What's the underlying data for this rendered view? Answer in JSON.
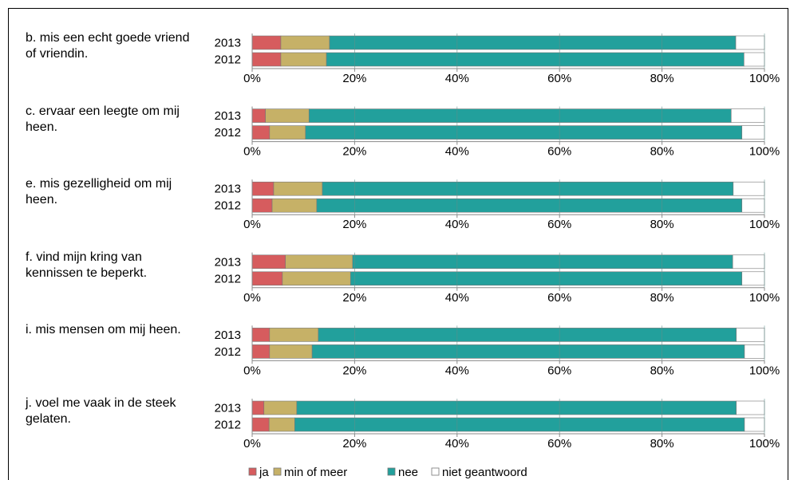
{
  "chart_data": [
    {
      "type": "stacked-barh",
      "title": "b. mis een echt goede vriend of vriendin.",
      "categories": [
        "2013",
        "2012"
      ],
      "series": [
        {
          "name": "ja",
          "color": "#d65c5e",
          "values": [
            5.6,
            5.6
          ]
        },
        {
          "name": "min of meer",
          "color": "#c6b167",
          "values": [
            9.5,
            8.9
          ]
        },
        {
          "name": "nee",
          "color": "#22a09c",
          "values": [
            79.3,
            81.5
          ]
        },
        {
          "name": "niet geantwoord",
          "color": "#ffffff",
          "values": [
            5.6,
            4.0
          ]
        }
      ],
      "xlim": [
        0,
        100
      ],
      "xticks": [
        {
          "value": 0,
          "label": "0%"
        },
        {
          "value": 20,
          "label": "20%"
        },
        {
          "value": 40,
          "label": "40%"
        },
        {
          "value": 60,
          "label": "60%"
        },
        {
          "value": 80,
          "label": "80%"
        },
        {
          "value": 100,
          "label": "100%"
        }
      ],
      "grid": true
    },
    {
      "type": "stacked-barh",
      "title": "c. ervaar een leegte om mij heen.",
      "categories": [
        "2013",
        "2012"
      ],
      "series": [
        {
          "name": "ja",
          "color": "#d65c5e",
          "values": [
            2.6,
            3.4
          ]
        },
        {
          "name": "min of meer",
          "color": "#c6b167",
          "values": [
            8.5,
            7.0
          ]
        },
        {
          "name": "nee",
          "color": "#22a09c",
          "values": [
            82.4,
            85.2
          ]
        },
        {
          "name": "niet geantwoord",
          "color": "#ffffff",
          "values": [
            6.5,
            4.4
          ]
        }
      ],
      "xlim": [
        0,
        100
      ],
      "xticks": [
        {
          "value": 0,
          "label": "0%"
        },
        {
          "value": 20,
          "label": "20%"
        },
        {
          "value": 40,
          "label": "40%"
        },
        {
          "value": 60,
          "label": "60%"
        },
        {
          "value": 80,
          "label": "80%"
        },
        {
          "value": 100,
          "label": "100%"
        }
      ],
      "grid": true
    },
    {
      "type": "stacked-barh",
      "title": "e. mis gezelligheid om mij heen.",
      "categories": [
        "2013",
        "2012"
      ],
      "series": [
        {
          "name": "ja",
          "color": "#d65c5e",
          "values": [
            4.2,
            3.9
          ]
        },
        {
          "name": "min of meer",
          "color": "#c6b167",
          "values": [
            9.5,
            8.7
          ]
        },
        {
          "name": "nee",
          "color": "#22a09c",
          "values": [
            80.2,
            83.0
          ]
        },
        {
          "name": "niet geantwoord",
          "color": "#ffffff",
          "values": [
            6.1,
            4.4
          ]
        }
      ],
      "xlim": [
        0,
        100
      ],
      "xticks": [
        {
          "value": 0,
          "label": "0%"
        },
        {
          "value": 20,
          "label": "20%"
        },
        {
          "value": 40,
          "label": "40%"
        },
        {
          "value": 60,
          "label": "60%"
        },
        {
          "value": 80,
          "label": "80%"
        },
        {
          "value": 100,
          "label": "100%"
        }
      ],
      "grid": true
    },
    {
      "type": "stacked-barh",
      "title": "f. vind mijn kring van kennissen te beperkt.",
      "categories": [
        "2013",
        "2012"
      ],
      "series": [
        {
          "name": "ja",
          "color": "#d65c5e",
          "values": [
            6.5,
            5.9
          ]
        },
        {
          "name": "min of meer",
          "color": "#c6b167",
          "values": [
            13.1,
            13.3
          ]
        },
        {
          "name": "nee",
          "color": "#22a09c",
          "values": [
            74.2,
            76.4
          ]
        },
        {
          "name": "niet geantwoord",
          "color": "#ffffff",
          "values": [
            6.2,
            4.4
          ]
        }
      ],
      "xlim": [
        0,
        100
      ],
      "xticks": [
        {
          "value": 0,
          "label": "0%"
        },
        {
          "value": 20,
          "label": "20%"
        },
        {
          "value": 40,
          "label": "40%"
        },
        {
          "value": 60,
          "label": "60%"
        },
        {
          "value": 80,
          "label": "80%"
        },
        {
          "value": 100,
          "label": "100%"
        }
      ],
      "grid": true
    },
    {
      "type": "stacked-barh",
      "title": "i. mis mensen om mij heen.",
      "categories": [
        "2013",
        "2012"
      ],
      "series": [
        {
          "name": "ja",
          "color": "#d65c5e",
          "values": [
            3.4,
            3.4
          ]
        },
        {
          "name": "min of meer",
          "color": "#c6b167",
          "values": [
            9.5,
            8.3
          ]
        },
        {
          "name": "nee",
          "color": "#22a09c",
          "values": [
            81.6,
            84.4
          ]
        },
        {
          "name": "niet geantwoord",
          "color": "#ffffff",
          "values": [
            5.5,
            3.9
          ]
        }
      ],
      "xlim": [
        0,
        100
      ],
      "xticks": [
        {
          "value": 0,
          "label": "0%"
        },
        {
          "value": 20,
          "label": "20%"
        },
        {
          "value": 40,
          "label": "40%"
        },
        {
          "value": 60,
          "label": "60%"
        },
        {
          "value": 80,
          "label": "80%"
        },
        {
          "value": 100,
          "label": "100%"
        }
      ],
      "grid": true
    },
    {
      "type": "stacked-barh",
      "title": "j. voel me vaak in de steek gelaten.",
      "categories": [
        "2013",
        "2012"
      ],
      "series": [
        {
          "name": "ja",
          "color": "#d65c5e",
          "values": [
            2.3,
            3.3
          ]
        },
        {
          "name": "min of meer",
          "color": "#c6b167",
          "values": [
            6.4,
            5.0
          ]
        },
        {
          "name": "nee",
          "color": "#22a09c",
          "values": [
            85.8,
            87.8
          ]
        },
        {
          "name": "niet geantwoord",
          "color": "#ffffff",
          "values": [
            5.5,
            3.9
          ]
        }
      ],
      "xlim": [
        0,
        100
      ],
      "xticks": [
        {
          "value": 0,
          "label": "0%"
        },
        {
          "value": 20,
          "label": "20%"
        },
        {
          "value": 40,
          "label": "40%"
        },
        {
          "value": 60,
          "label": "60%"
        },
        {
          "value": 80,
          "label": "80%"
        },
        {
          "value": 100,
          "label": "100%"
        }
      ],
      "grid": true
    }
  ]
}
